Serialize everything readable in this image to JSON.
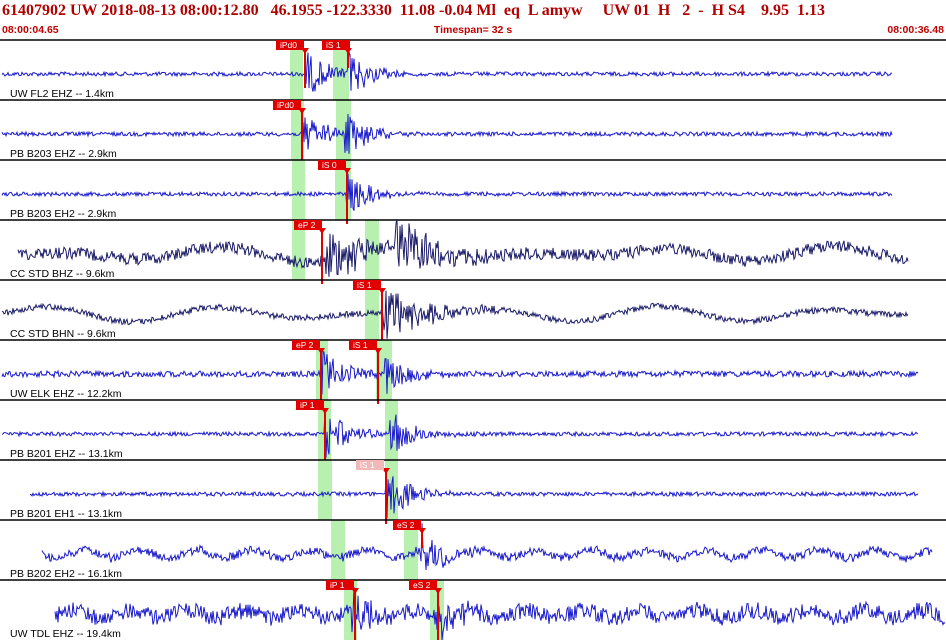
{
  "header": {
    "title": "61407902 UW 2018-08-13 08:00:12.80   46.1955 -122.3330  11.08 -0.04 Ml  eq  L amyw     UW 01  H   2  -  H S4    9.95  1.13",
    "start_time": "08:00:04.65",
    "timespan": "Timespan=  32 s",
    "end_time": "08:00:36.48"
  },
  "colors": {
    "text_red": "#b00000",
    "pick_red": "#e00000",
    "pick_pale": "#f0b8b8",
    "phase_green": "#b8f0b0",
    "trace_blue": "#1a1acc",
    "trace_navy": "#1c1c6a"
  },
  "traces": [
    {
      "label": "UW FL2 EHZ -- 1.4km",
      "color": "trace_blue",
      "env": "quiet",
      "picks": [
        {
          "label": "iPd0"
        },
        {
          "label": "iS 1"
        }
      ]
    },
    {
      "label": "PB B203 EHZ -- 2.9km",
      "color": "trace_blue",
      "env": "quiet",
      "picks": [
        {
          "label": "iPd0"
        }
      ]
    },
    {
      "label": "PB B203 EH2 -- 2.9km",
      "color": "trace_blue",
      "env": "quiet",
      "picks": [
        {
          "label": "iS 0"
        }
      ]
    },
    {
      "label": "CC STD BHZ -- 9.6km",
      "color": "trace_navy",
      "env": "wavy",
      "picks": [
        {
          "label": "eP 2"
        }
      ]
    },
    {
      "label": "CC STD BHN -- 9.6km",
      "color": "trace_navy",
      "env": "wavy",
      "picks": [
        {
          "label": "iS 1"
        }
      ]
    },
    {
      "label": "UW ELK EHZ -- 12.2km",
      "color": "trace_blue",
      "env": "quiet",
      "picks": [
        {
          "label": "eP 2"
        },
        {
          "label": "iS 1"
        }
      ]
    },
    {
      "label": "PB B201 EHZ -- 13.1km",
      "color": "trace_blue",
      "env": "quiet",
      "picks": [
        {
          "label": "iP 1"
        }
      ]
    },
    {
      "label": "PB B201 EH1 -- 13.1km",
      "color": "trace_blue",
      "env": "quiet",
      "picks": [
        {
          "label": "iS 1"
        }
      ]
    },
    {
      "label": "PB B202 EH2 -- 16.1km",
      "color": "trace_blue",
      "env": "busy",
      "picks": [
        {
          "label": "eS 2"
        }
      ]
    },
    {
      "label": "UW TDL EHZ -- 19.4km",
      "color": "trace_blue",
      "env": "busy",
      "picks": [
        {
          "label": "iP 1"
        },
        {
          "label": "eS 2"
        }
      ]
    }
  ]
}
